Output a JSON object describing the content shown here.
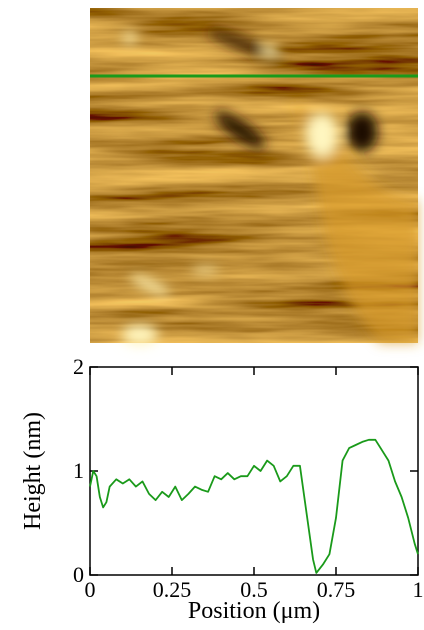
{
  "chart_data": {
    "type": "line",
    "xlabel": "Position (μm)",
    "ylabel": "Height (nm)",
    "xlim": [
      0,
      1
    ],
    "xticks": [
      0,
      0.25,
      0.5,
      0.75,
      1
    ],
    "ylim": [
      0,
      2
    ],
    "yticks": [
      0,
      1,
      2
    ],
    "series": [
      {
        "color": "#1a9a1a",
        "x": [
          0,
          0.01,
          0.02,
          0.03,
          0.04,
          0.05,
          0.06,
          0.08,
          0.1,
          0.12,
          0.14,
          0.16,
          0.18,
          0.2,
          0.22,
          0.24,
          0.26,
          0.28,
          0.3,
          0.32,
          0.34,
          0.36,
          0.38,
          0.4,
          0.42,
          0.44,
          0.46,
          0.48,
          0.5,
          0.52,
          0.54,
          0.56,
          0.58,
          0.6,
          0.62,
          0.64,
          0.66,
          0.68,
          0.69,
          0.71,
          0.73,
          0.75,
          0.77,
          0.79,
          0.81,
          0.83,
          0.85,
          0.87,
          0.89,
          0.91,
          0.93,
          0.95,
          0.97,
          0.99,
          1
        ],
        "values": [
          0.85,
          1.0,
          0.95,
          0.75,
          0.65,
          0.7,
          0.85,
          0.92,
          0.88,
          0.92,
          0.85,
          0.9,
          0.78,
          0.72,
          0.8,
          0.75,
          0.85,
          0.72,
          0.78,
          0.85,
          0.82,
          0.8,
          0.95,
          0.92,
          0.98,
          0.92,
          0.95,
          0.95,
          1.05,
          1.0,
          1.1,
          1.05,
          0.9,
          0.95,
          1.05,
          1.05,
          0.6,
          0.15,
          0.02,
          0.1,
          0.2,
          0.55,
          1.1,
          1.22,
          1.25,
          1.28,
          1.3,
          1.3,
          1.2,
          1.1,
          0.9,
          0.75,
          0.55,
          0.3,
          0.2
        ]
      }
    ]
  }
}
